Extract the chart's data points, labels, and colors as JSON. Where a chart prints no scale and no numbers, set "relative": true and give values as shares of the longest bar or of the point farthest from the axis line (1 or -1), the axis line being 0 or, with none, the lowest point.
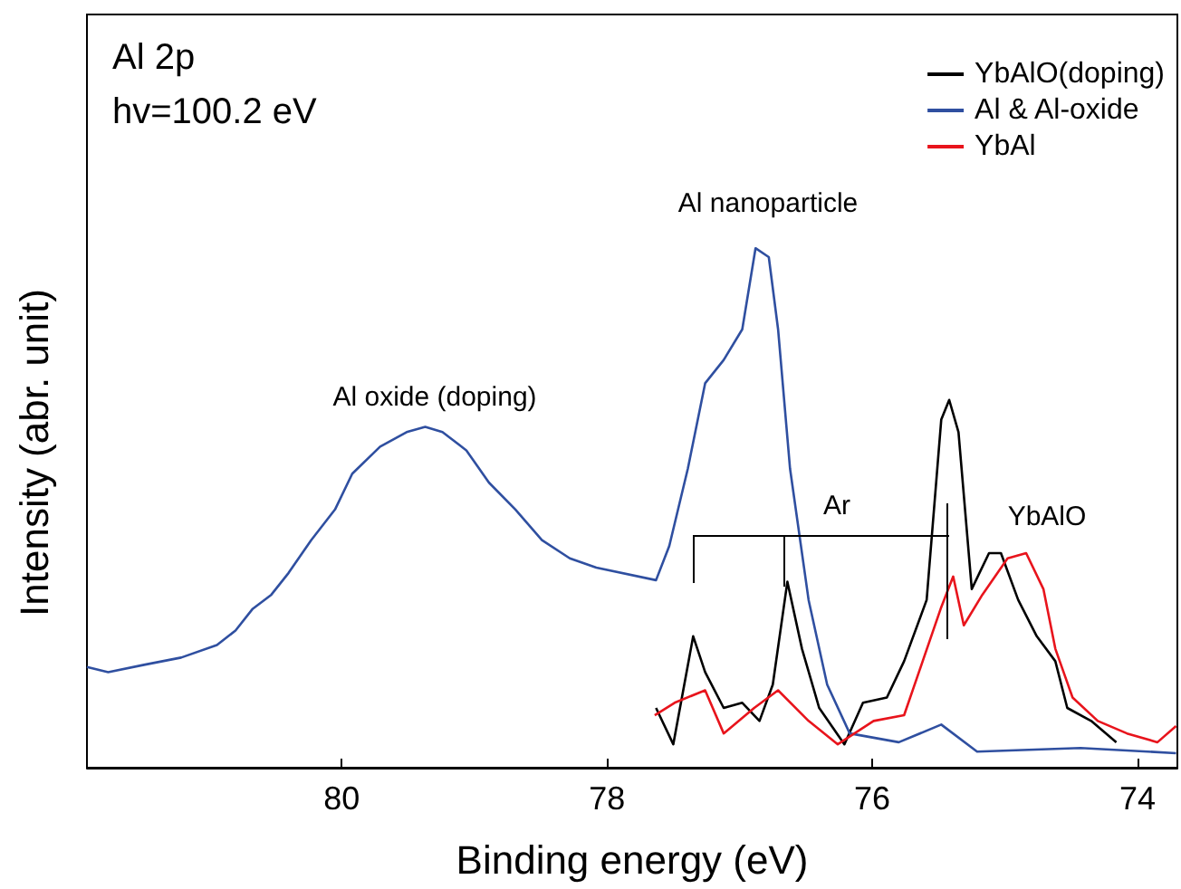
{
  "chart_data": {
    "type": "line",
    "relative": true,
    "xlabel": "Binding energy (eV)",
    "ylabel": "Intensity (abr. unit)",
    "xlim": [
      81.92,
      73.7
    ],
    "xticks": [
      80,
      78,
      76,
      74
    ],
    "legend": "top right",
    "grid": false,
    "annotations": [
      "Al 2p",
      "hv=100.2 eV",
      "Al oxide (doping)",
      "Al nanoparticle",
      "Ar",
      "YbAlO"
    ],
    "series": [
      {
        "name": "YbAlO(doping)",
        "color": "#000000",
        "x": [
          77.63,
          77.5,
          77.35,
          77.26,
          77.12,
          76.98,
          76.85,
          76.75,
          76.64,
          76.53,
          76.4,
          76.21,
          76.07,
          75.89,
          75.76,
          75.59,
          75.48,
          75.42,
          75.35,
          75.25,
          75.12,
          75.03,
          74.9,
          74.76,
          74.62,
          74.53,
          74.35,
          74.16
        ],
        "values": [
          0.115,
          0.045,
          0.253,
          0.184,
          0.115,
          0.125,
          0.09,
          0.16,
          0.358,
          0.229,
          0.115,
          0.045,
          0.125,
          0.135,
          0.205,
          0.323,
          0.67,
          0.708,
          0.646,
          0.344,
          0.413,
          0.413,
          0.323,
          0.253,
          0.205,
          0.115,
          0.09,
          0.049
        ]
      },
      {
        "name": "Al & Al-oxide",
        "color": "#2f4fa0",
        "x": [
          81.92,
          81.76,
          81.49,
          81.21,
          80.94,
          80.8,
          80.67,
          80.53,
          80.4,
          80.23,
          80.05,
          79.92,
          79.71,
          79.51,
          79.37,
          79.24,
          79.06,
          78.89,
          78.69,
          78.49,
          78.28,
          78.08,
          77.63,
          77.53,
          77.39,
          77.26,
          77.12,
          76.98,
          76.88,
          76.78,
          76.71,
          76.62,
          76.48,
          76.34,
          76.17,
          75.8,
          75.48,
          75.21,
          74.43,
          73.71
        ],
        "values": [
          0.194,
          0.184,
          0.198,
          0.212,
          0.236,
          0.264,
          0.306,
          0.333,
          0.375,
          0.438,
          0.497,
          0.566,
          0.618,
          0.646,
          0.656,
          0.646,
          0.611,
          0.549,
          0.497,
          0.438,
          0.403,
          0.385,
          0.361,
          0.427,
          0.576,
          0.74,
          0.785,
          0.844,
          1.0,
          0.983,
          0.844,
          0.576,
          0.323,
          0.16,
          0.066,
          0.049,
          0.083,
          0.031,
          0.038,
          0.028
        ]
      },
      {
        "name": "YbAl",
        "color": "#e8141c",
        "x": [
          77.64,
          77.49,
          77.26,
          77.12,
          76.89,
          76.71,
          76.48,
          76.26,
          75.99,
          75.76,
          75.62,
          75.48,
          75.39,
          75.31,
          75.17,
          74.98,
          74.84,
          74.71,
          74.62,
          74.49,
          74.3,
          74.08,
          73.85,
          73.71
        ],
        "values": [
          0.101,
          0.125,
          0.149,
          0.066,
          0.115,
          0.149,
          0.09,
          0.045,
          0.09,
          0.101,
          0.205,
          0.309,
          0.368,
          0.274,
          0.333,
          0.403,
          0.413,
          0.344,
          0.229,
          0.135,
          0.09,
          0.066,
          0.049,
          0.08
        ]
      }
    ]
  }
}
